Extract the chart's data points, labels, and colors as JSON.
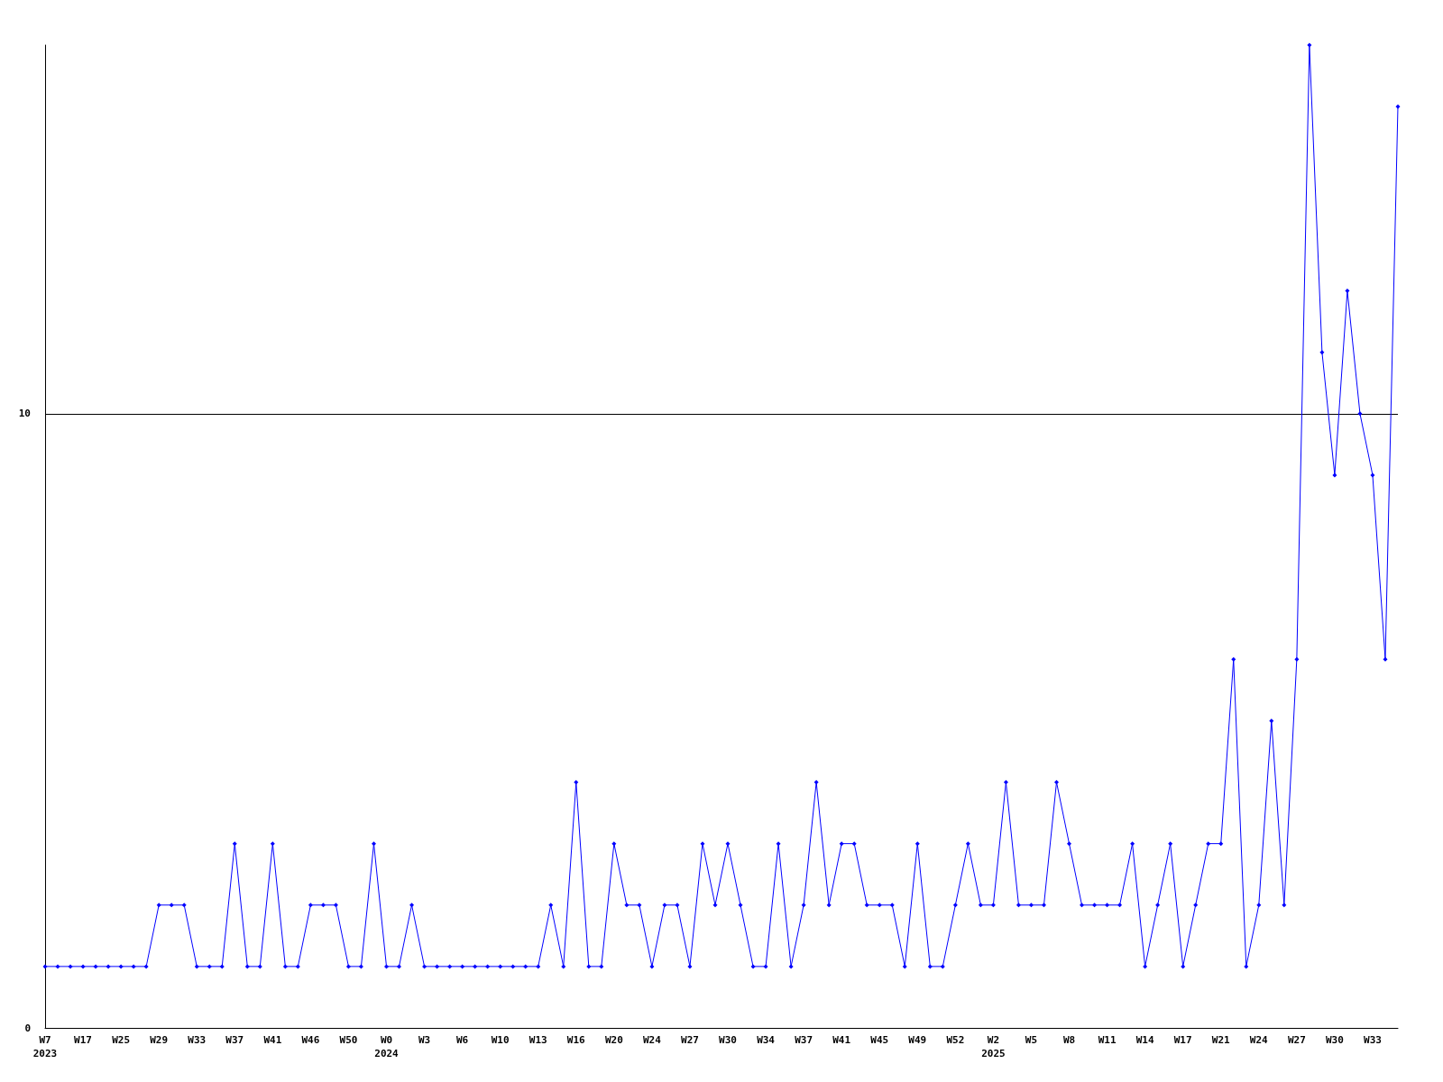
{
  "chart_data": {
    "type": "line",
    "categories": [
      "W7\n2023",
      null,
      null,
      "W17",
      null,
      null,
      "W25",
      null,
      null,
      "W29",
      null,
      null,
      "W33",
      null,
      null,
      "W37",
      null,
      null,
      "W41",
      null,
      null,
      "W46",
      null,
      null,
      "W50",
      null,
      null,
      "W0\n2024",
      null,
      null,
      "W3",
      null,
      null,
      "W6",
      null,
      null,
      "W10",
      null,
      null,
      "W13",
      null,
      null,
      "W16",
      null,
      null,
      "W20",
      null,
      null,
      "W24",
      null,
      null,
      "W27",
      null,
      null,
      "W30",
      null,
      null,
      "W34",
      null,
      null,
      "W37",
      null,
      null,
      "W41",
      null,
      null,
      "W45",
      null,
      null,
      "W49",
      null,
      null,
      "W52",
      null,
      null,
      "W2\n2025",
      null,
      null,
      "W5",
      null,
      null,
      "W8",
      null,
      null,
      "W11",
      null,
      null,
      "W14",
      null,
      null,
      "W17",
      null,
      null,
      "W21",
      null,
      null,
      "W24",
      null,
      null,
      "W27",
      null,
      null,
      "W30",
      null,
      null,
      "W33",
      null,
      null
    ],
    "series": [
      {
        "color": "#0000ff",
        "values": [
          1,
          1,
          1,
          1,
          1,
          1,
          1,
          1,
          1,
          2,
          2,
          2,
          1,
          1,
          1,
          3,
          1,
          1,
          3,
          1,
          1,
          2,
          2,
          2,
          1,
          1,
          3,
          1,
          1,
          2,
          1,
          1,
          1,
          1,
          1,
          1,
          1,
          1,
          1,
          1,
          2,
          1,
          4,
          1,
          1,
          3,
          2,
          2,
          1,
          2,
          2,
          1,
          3,
          2,
          3,
          2,
          1,
          1,
          3,
          1,
          2,
          4,
          2,
          3,
          3,
          2,
          2,
          2,
          1,
          3,
          1,
          1,
          2,
          3,
          2,
          2,
          4,
          2,
          2,
          2,
          4,
          3,
          2,
          2,
          2,
          2,
          3,
          1,
          2,
          3,
          1,
          2,
          3,
          3,
          6,
          1,
          2,
          5,
          2,
          6,
          16,
          11,
          9,
          12,
          10,
          9,
          6,
          15
        ]
      }
    ],
    "ylim": [
      0,
      16
    ],
    "yticks": [
      0,
      10
    ],
    "grid": "y",
    "marker": "diamond",
    "line_style": "solid"
  }
}
